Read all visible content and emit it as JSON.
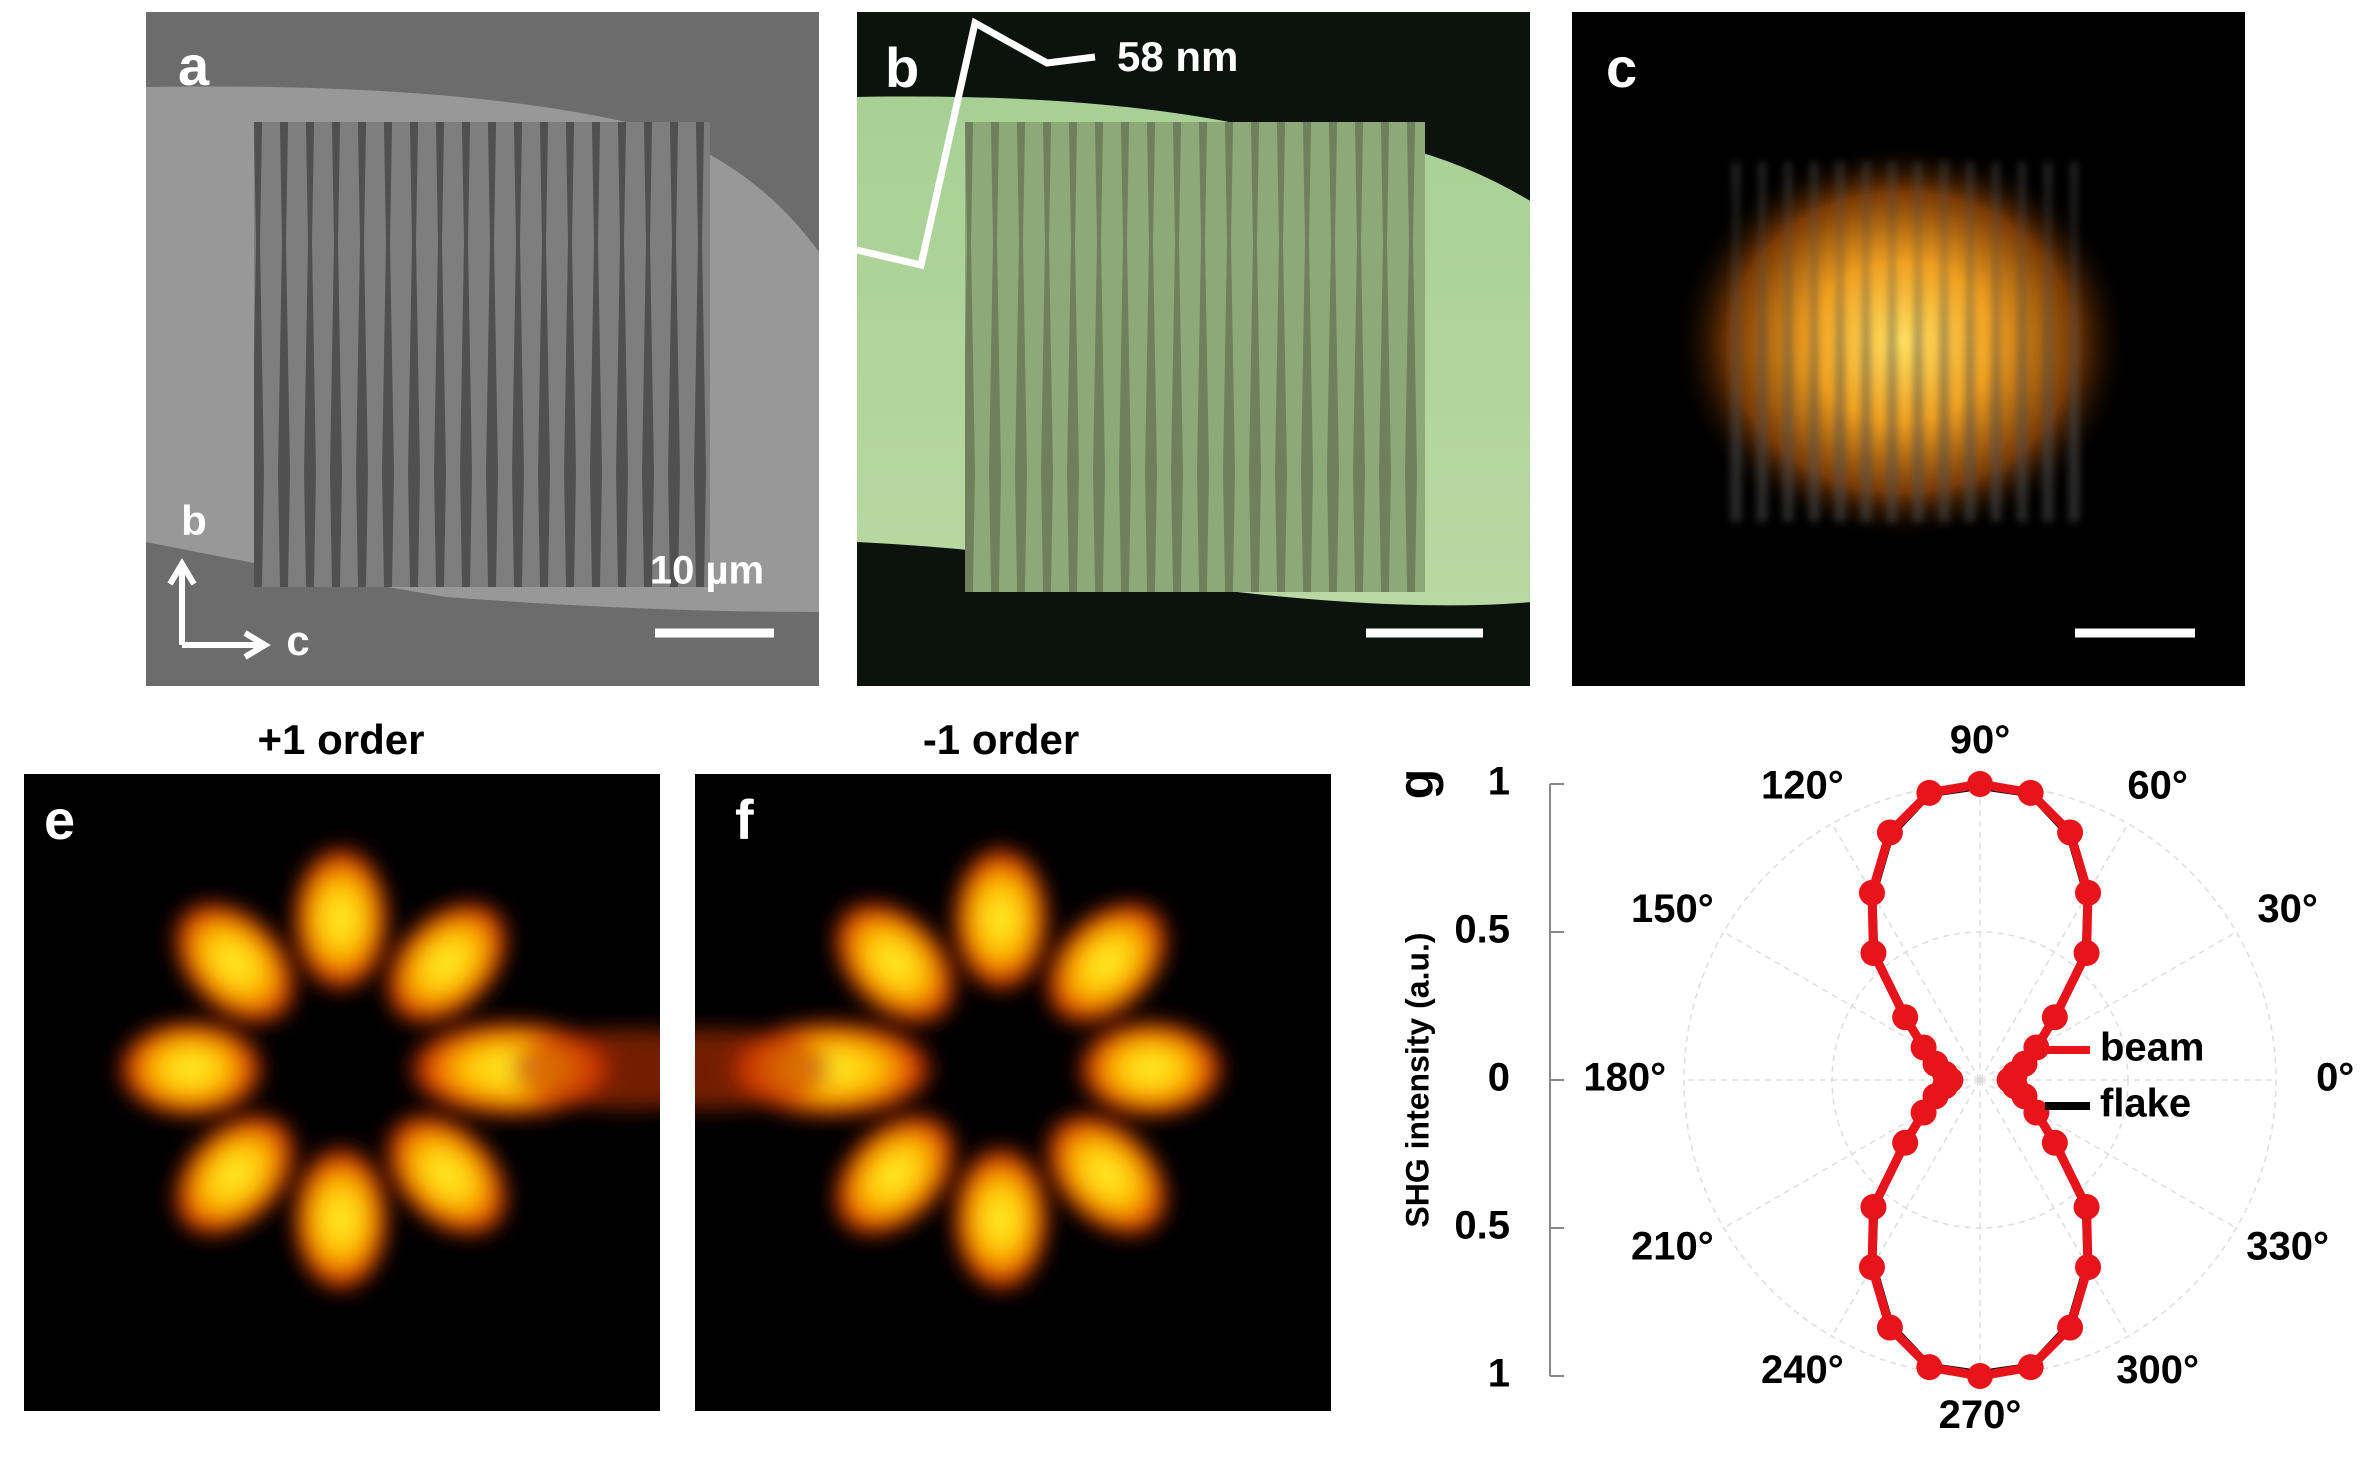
{
  "figure": {
    "panels": {
      "a": {
        "label": "a",
        "scale_bar": "10 µm",
        "axis_b": "b",
        "axis_c": "c"
      },
      "b": {
        "label": "b",
        "profile_label": "58 nm"
      },
      "c": {
        "label": "c"
      },
      "e": {
        "label": "e",
        "title": "+1 order"
      },
      "f": {
        "label": "f",
        "title": "-1 order"
      }
    }
  },
  "chart_data": {
    "type": "polar",
    "label": "g",
    "ylabel": "SHG intensity (a.u.)",
    "theta": [
      0,
      10,
      20,
      30,
      40,
      50,
      60,
      70,
      80,
      90,
      100,
      110,
      120,
      130,
      140,
      150,
      160,
      170,
      180,
      190,
      200,
      210,
      220,
      230,
      240,
      250,
      260,
      270,
      280,
      290,
      300,
      310,
      320,
      330,
      340,
      350
    ],
    "series": [
      {
        "name": "beam",
        "color": "#e8141b",
        "markers": true,
        "values": [
          0.1,
          0.12,
          0.16,
          0.22,
          0.33,
          0.56,
          0.73,
          0.89,
          0.985,
          1,
          0.985,
          0.89,
          0.73,
          0.56,
          0.33,
          0.22,
          0.16,
          0.12,
          0.1,
          0.12,
          0.16,
          0.22,
          0.33,
          0.56,
          0.73,
          0.89,
          0.985,
          1,
          0.985,
          0.89,
          0.73,
          0.56,
          0.33,
          0.22,
          0.16,
          0.12
        ]
      },
      {
        "name": "flake",
        "color": "#000000",
        "markers": false,
        "values": [
          0.09,
          0.11,
          0.15,
          0.21,
          0.32,
          0.55,
          0.72,
          0.88,
          0.98,
          0.99,
          0.98,
          0.88,
          0.72,
          0.55,
          0.32,
          0.21,
          0.15,
          0.11,
          0.09,
          0.11,
          0.15,
          0.21,
          0.32,
          0.55,
          0.72,
          0.88,
          0.98,
          0.99,
          0.98,
          0.88,
          0.72,
          0.55,
          0.32,
          0.21,
          0.15,
          0.11
        ]
      }
    ],
    "rlim": [
      0,
      1
    ],
    "ylim": [
      -1,
      1
    ],
    "yticks": [
      1,
      0.5,
      0,
      {
        "value": -0.5,
        "label": "0.5"
      },
      {
        "value": -1,
        "label": "1"
      }
    ],
    "thetaticks": [
      {
        "value": 0,
        "label": "0°"
      },
      {
        "value": 30,
        "label": "30°"
      },
      {
        "value": 60,
        "label": "60°"
      },
      {
        "value": 90,
        "label": "90°"
      },
      {
        "value": 120,
        "label": "120°"
      },
      {
        "value": 150,
        "label": "150°"
      },
      {
        "value": 180,
        "label": "180°"
      },
      {
        "value": 210,
        "label": "210°"
      },
      {
        "value": 240,
        "label": "240°"
      },
      {
        "value": 270,
        "label": "270°"
      },
      {
        "value": 300,
        "label": "300°"
      },
      {
        "value": 330,
        "label": "330°"
      }
    ],
    "grid": true,
    "legend": "right"
  }
}
